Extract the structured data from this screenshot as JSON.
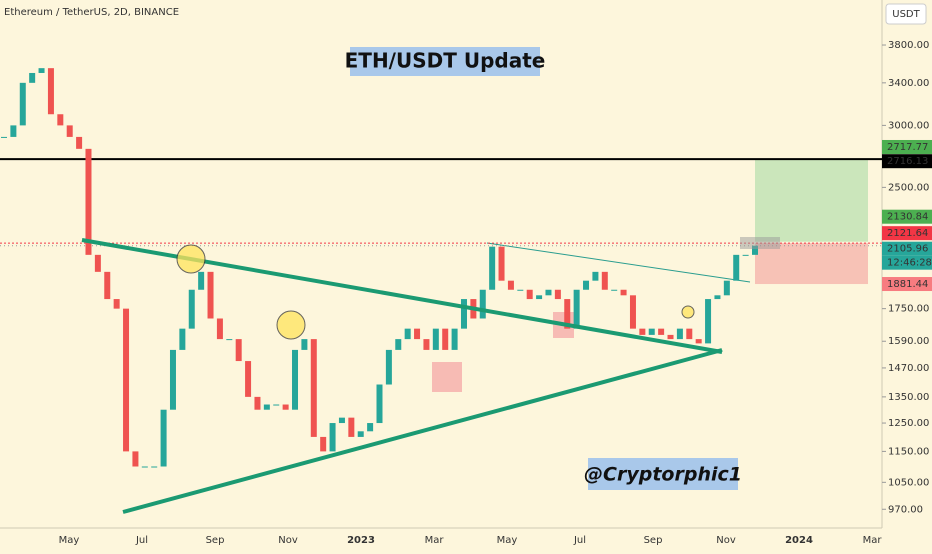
{
  "chart_data": {
    "type": "candlestick",
    "symbol": "Ethereum / TetherUS, 2D, BINANCE",
    "title": "ETH/USDT Update",
    "author": "@Cryptorphic1",
    "currency": "USDT",
    "log_scale": true,
    "ylim": [
      918,
      4338
    ],
    "yticks": [
      {
        "value": 3800,
        "label": "3800.00"
      },
      {
        "value": 3400,
        "label": "3400.00"
      },
      {
        "value": 3000,
        "label": "3000.00"
      },
      {
        "value": 2500,
        "label": "2500.00"
      },
      {
        "value": 1750,
        "label": "1750.00"
      },
      {
        "value": 1590,
        "label": "1590.00"
      },
      {
        "value": 1470,
        "label": "1470.00"
      },
      {
        "value": 1350,
        "label": "1350.00"
      },
      {
        "value": 1250,
        "label": "1250.00"
      },
      {
        "value": 1150,
        "label": "1150.00"
      },
      {
        "value": 1050,
        "label": "1050.00"
      },
      {
        "value": 970,
        "label": "970.00"
      }
    ],
    "x_axis_labels": [
      "May",
      "Jul",
      "Sep",
      "Nov",
      "2023",
      "Mar",
      "May",
      "Jul",
      "Sep",
      "Nov",
      "2024",
      "Mar"
    ],
    "price_tags": [
      {
        "value": 2717.77,
        "color": "#4caf50"
      },
      {
        "value": 2716.13,
        "color": "#000000"
      },
      {
        "value": 2130.84,
        "color": "#4caf50"
      },
      {
        "value": 2121.64,
        "color": "#f23645"
      },
      {
        "value": 2105.96,
        "color": "#26a69a"
      },
      {
        "value": 1881.44,
        "color": "#f77c80"
      }
    ],
    "countdown": "12:46:28",
    "up_color": "#26a69a",
    "down_color": "#ef5350",
    "series": [
      {
        "name": "ETHUSDT",
        "values": [
          2900,
          3000,
          3400,
          3500,
          3550,
          3100,
          3000,
          2900,
          2800,
          2050,
          1950,
          1800,
          1750,
          1150,
          1100,
          1100,
          1100,
          1300,
          1550,
          1650,
          1850,
          1950,
          1700,
          1600,
          1600,
          1500,
          1350,
          1300,
          1320,
          1320,
          1300,
          1550,
          1600,
          1200,
          1150,
          1250,
          1270,
          1200,
          1220,
          1250,
          1400,
          1550,
          1600,
          1650,
          1600,
          1550,
          1650,
          1550,
          1650,
          1800,
          1700,
          1850,
          2100,
          1900,
          1850,
          1850,
          1800,
          1820,
          1850,
          1800,
          1650,
          1850,
          1900,
          1950,
          1850,
          1850,
          1820,
          1650,
          1620,
          1650,
          1620,
          1600,
          1650,
          1600,
          1580,
          1800,
          1820,
          1900,
          2050,
          2050,
          2106
        ]
      }
    ]
  }
}
